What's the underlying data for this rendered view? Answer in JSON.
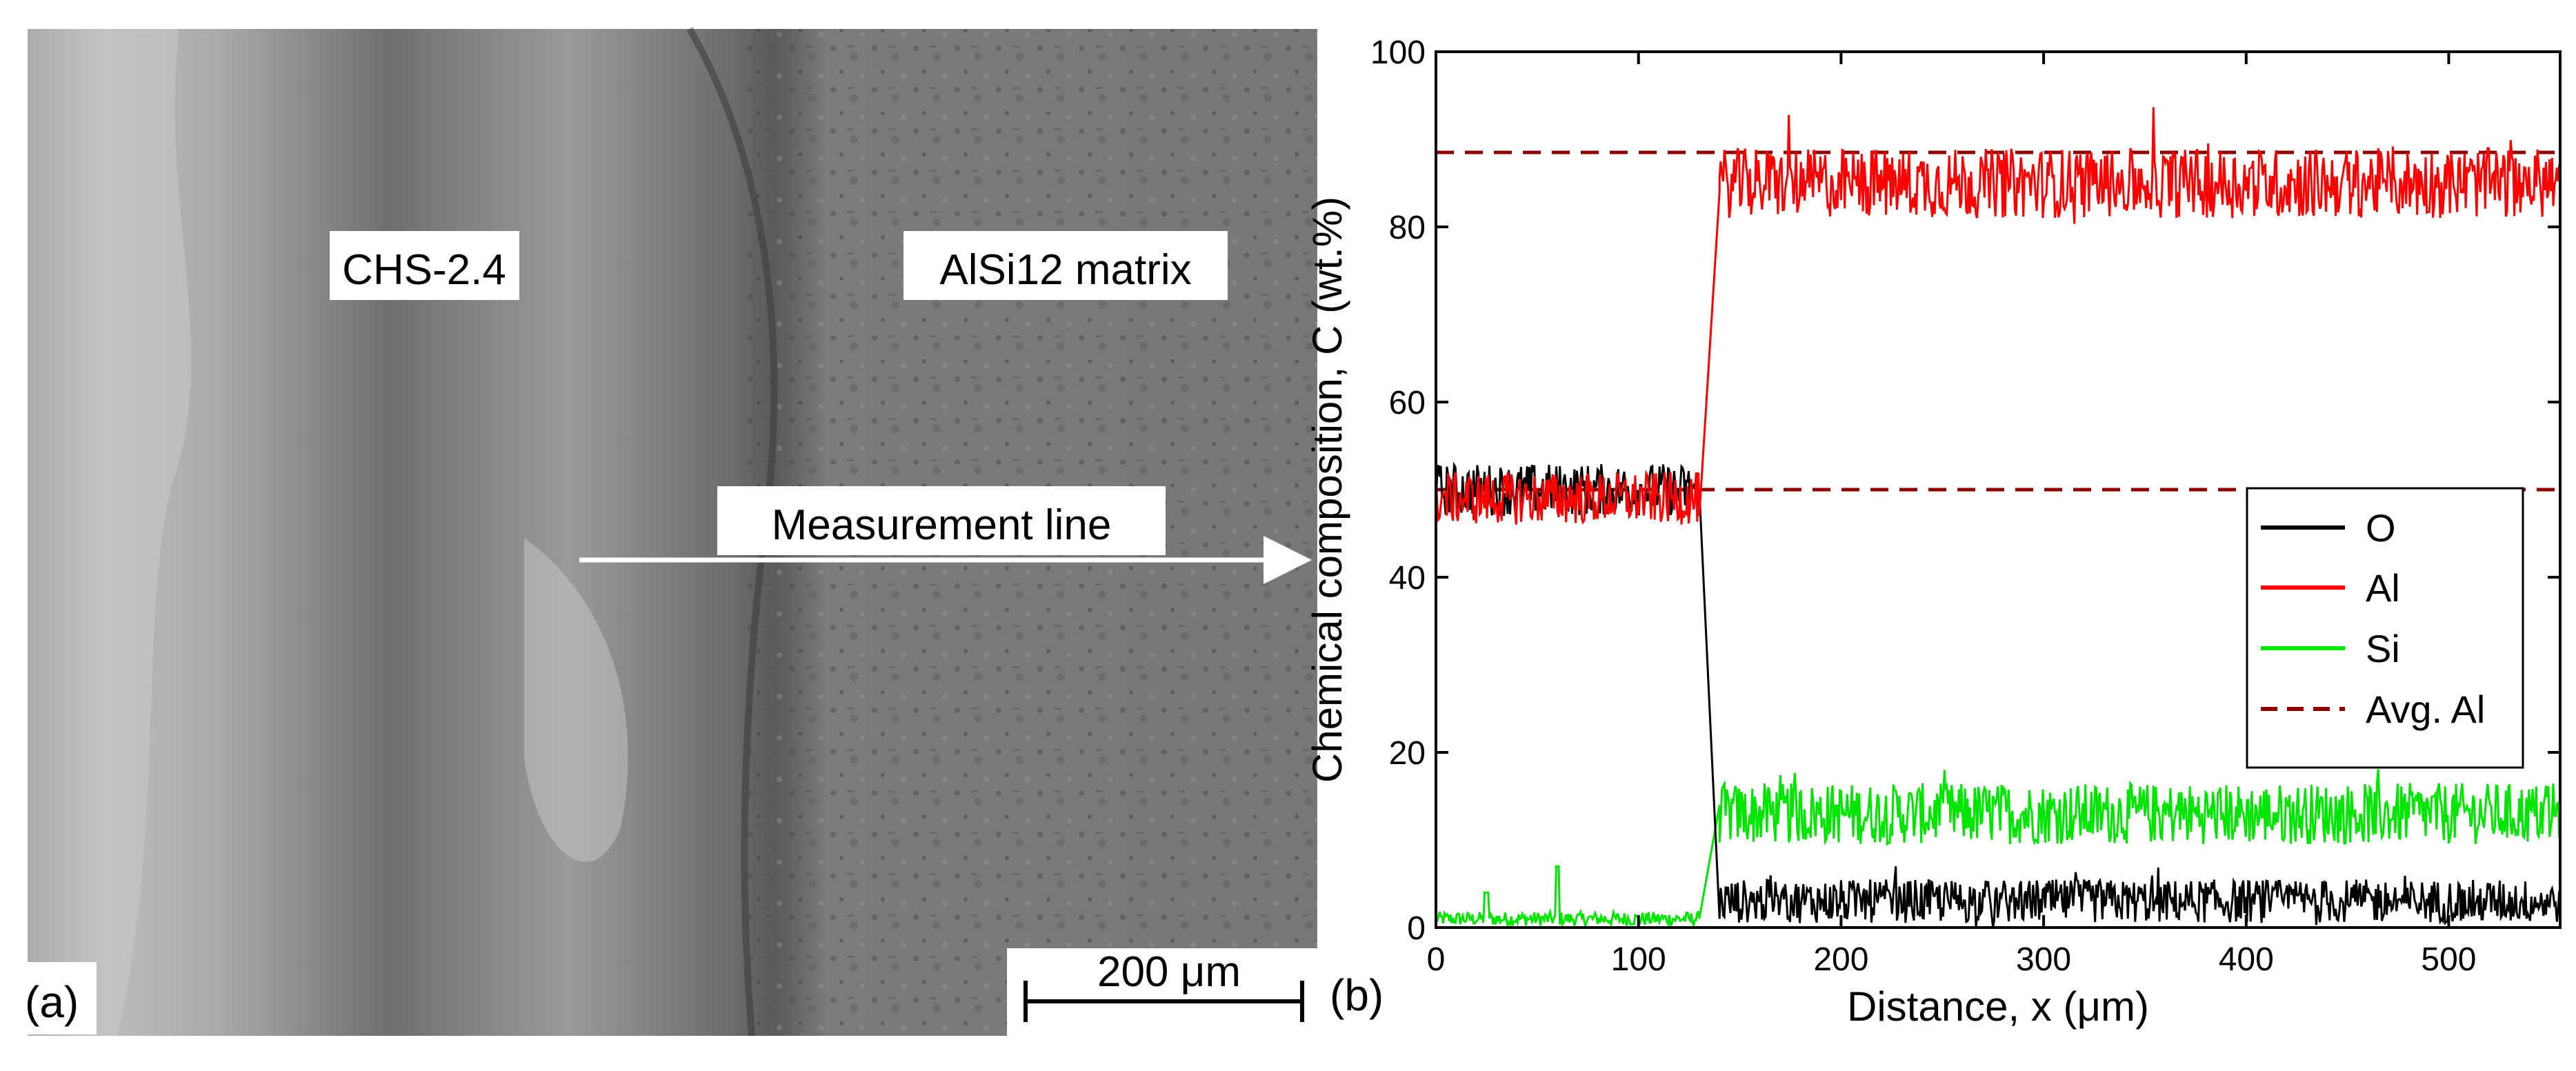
{
  "panel_a": {
    "label": "(a)",
    "labels": {
      "left_region": "CHS-2.4",
      "right_region": "AlSi12 matrix",
      "measurement": "Measurement line"
    },
    "scale_bar": "200 μm"
  },
  "panel_b": {
    "label": "(b)"
  },
  "colors": {
    "O": "#000000",
    "Al": "#ff0000",
    "Si": "#00e600",
    "avg": "#8b0000"
  },
  "chart_data": {
    "type": "line",
    "title": "",
    "xlabel": "Distance, x (μm)",
    "ylabel": "Chemical composition, C (wt.%)",
    "xlim": [
      0,
      555
    ],
    "ylim": [
      0,
      100
    ],
    "xticks": [
      "0",
      "100",
      "200",
      "300",
      "400",
      "500"
    ],
    "yticks": [
      "0",
      "20",
      "40",
      "60",
      "80",
      "100"
    ],
    "grid": false,
    "legend_position": "right",
    "interface_x": 135,
    "series": [
      {
        "name": "O",
        "style": "solid",
        "segments": [
          {
            "x": [
              0,
              130
            ],
            "mean": 50,
            "noise": 3
          },
          {
            "x": [
              140,
              555
            ],
            "mean": 3,
            "noise": 2.5
          }
        ],
        "transition": [
          [
            130,
            50
          ],
          [
            140,
            1
          ]
        ]
      },
      {
        "name": "Al",
        "style": "solid",
        "segments": [
          {
            "x": [
              0,
              130
            ],
            "mean": 49,
            "noise": 3
          },
          {
            "x": [
              140,
              555
            ],
            "mean": 85,
            "noise": 4
          }
        ],
        "transition": [
          [
            130,
            47
          ],
          [
            140,
            84
          ]
        ]
      },
      {
        "name": "Si",
        "style": "solid",
        "segments": [
          {
            "x": [
              0,
              130
            ],
            "mean": 1,
            "noise": 0.8
          },
          {
            "x": [
              140,
              555
            ],
            "mean": 13,
            "noise": 3.5
          }
        ],
        "transition": [
          [
            130,
            1
          ],
          [
            140,
            14
          ]
        ],
        "spikes": [
          [
            25,
            4
          ],
          [
            60,
            7
          ]
        ]
      },
      {
        "name": "Avg. Al",
        "style": "dashed",
        "lines": [
          {
            "x": [
              0,
              555
            ],
            "y": 88.5
          },
          {
            "x": [
              0,
              555
            ],
            "y": 50
          }
        ]
      }
    ]
  }
}
